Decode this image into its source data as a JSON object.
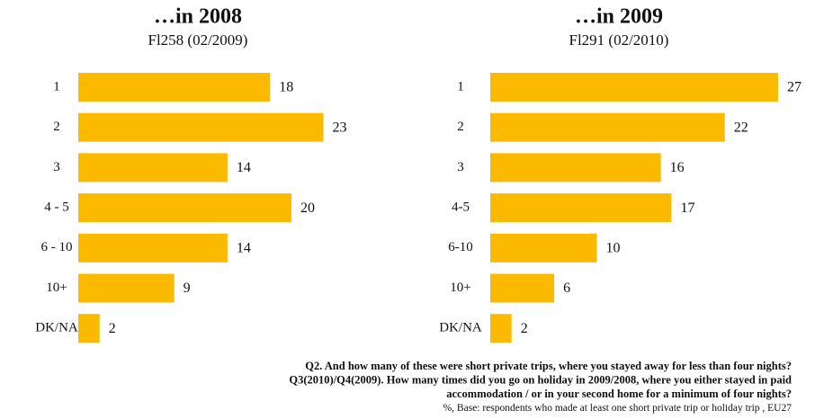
{
  "chart_data": [
    {
      "type": "bar",
      "orientation": "horizontal",
      "title": "…in 2008",
      "subtitle": "Fl258 (02/2009)",
      "categories": [
        "1",
        "2",
        "3",
        "4 - 5",
        "6 - 10",
        "10+",
        "DK/NA"
      ],
      "values": [
        18,
        23,
        14,
        20,
        14,
        9,
        2
      ],
      "color": "#fbb900"
    },
    {
      "type": "bar",
      "orientation": "horizontal",
      "title": "…in 2009",
      "subtitle": "Fl291 (02/2010)",
      "categories": [
        "1",
        "2",
        "3",
        "4-5",
        "6-10",
        "10+",
        "DK/NA"
      ],
      "values": [
        27,
        22,
        16,
        17,
        10,
        6,
        2
      ],
      "color": "#fbb900"
    }
  ],
  "notes": [
    "Q2. And how many of these were short private trips, where you stayed away for less than four nights?",
    "Q3(2010)/Q4(2009). How many times did you go on holiday in 2009/2008, where you either stayed in paid",
    "accommodation / or in your second home for a minimum of four nights?",
    "%, Base: respondents who made at least one  short private trip or holiday trip , EU27"
  ]
}
